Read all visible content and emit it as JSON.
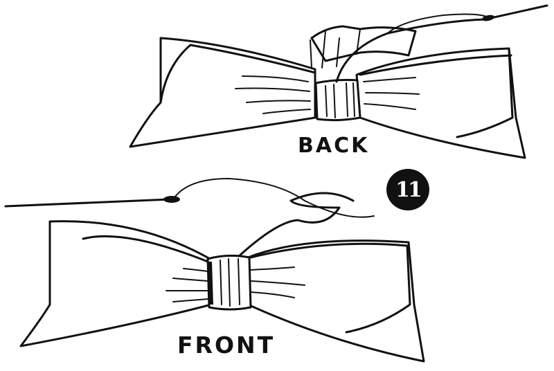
{
  "labels": {
    "back": "BACK",
    "front": "FRONT",
    "step_number": "11"
  },
  "colors": {
    "ink": "#111111",
    "paper": "#ffffff"
  }
}
